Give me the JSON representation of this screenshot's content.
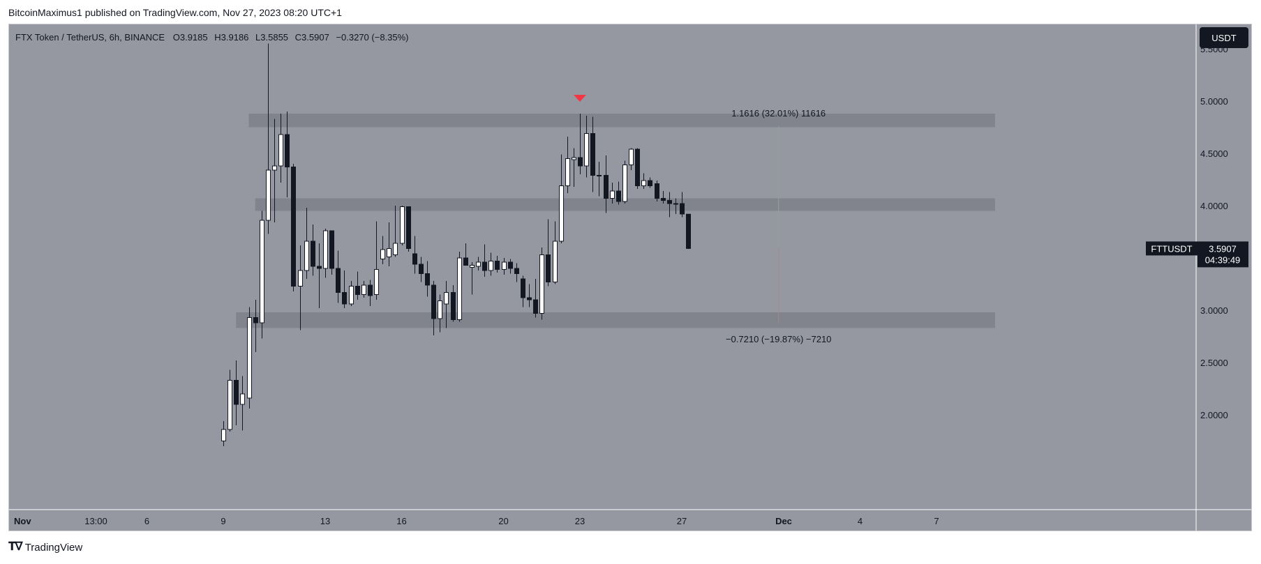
{
  "attribution": "BitcoinMaximus1 published on TradingView.com, Nov 27, 2023 08:20 UTC+1",
  "footer": {
    "brand": "TradingView",
    "logo_icon": "tradingview-logo-icon"
  },
  "header": {
    "symbol": "FTX Token / TetherUS, 6h, BINANCE",
    "o_label": "O",
    "o_value": "3.9185",
    "h_label": "H",
    "h_value": "3.9186",
    "l_label": "L",
    "l_value": "3.5855",
    "c_label": "C",
    "c_value": "3.5907",
    "change": "−0.3270 (−8.35%)"
  },
  "currency_button": "USDT",
  "price_tag": {
    "symbol": "FTTUSDT",
    "price": "3.5907",
    "countdown": "04:39:49"
  },
  "measure_up": "1.1616 (32.01%) 11616",
  "measure_down": "−0.7210 (−19.87%) −7210",
  "colors": {
    "background": "#ffffff",
    "plot": "#9598a1",
    "candle_up": "#ffffff",
    "candle_down": "#131722",
    "zone": "#7e8089",
    "marker": "#f23645",
    "axis_text": "#131722",
    "tag_bg": "#131722"
  },
  "marker_icon": "red-down-triangle-icon",
  "chart_data": {
    "type": "candlestick",
    "title": "FTX Token / TetherUS, 6h, BINANCE",
    "symbol": "FTTUSDT",
    "timeframe": "6h",
    "exchange": "BINANCE",
    "ylim": [
      1.75,
      5.6
    ],
    "y_ticks": [
      "5.5000",
      "5.0000",
      "4.5000",
      "4.0000",
      "3.5000",
      "3.0000",
      "2.5000",
      "2.0000"
    ],
    "x_ticks": [
      "Nov",
      "13:00",
      "6",
      "9",
      "13",
      "16",
      "20",
      "23",
      "27",
      "Dec",
      "4",
      "7"
    ],
    "x_tick_days": [
      1,
      4,
      6,
      9,
      13,
      16,
      20,
      23,
      27,
      31,
      34,
      37
    ],
    "last_price": 3.5907,
    "zones": [
      {
        "start_day": 10.0,
        "end_day": 39.3,
        "low": 4.75,
        "high": 4.88
      },
      {
        "start_day": 10.25,
        "end_day": 39.3,
        "low": 3.95,
        "high": 4.07
      },
      {
        "start_day": 9.5,
        "end_day": 39.3,
        "low": 2.83,
        "high": 2.98
      }
    ],
    "resistance_marker": {
      "day": 23.0,
      "price": 5.02
    },
    "measurement": {
      "day": 30.8,
      "from": 3.6,
      "up_to": 4.76,
      "down_to": 2.88
    },
    "candles": [
      {
        "t": 9.0,
        "o": 1.75,
        "h": 1.94,
        "l": 1.7,
        "c": 1.86
      },
      {
        "t": 9.25,
        "o": 1.86,
        "h": 2.43,
        "l": 1.84,
        "c": 2.33
      },
      {
        "t": 9.5,
        "o": 2.33,
        "h": 2.52,
        "l": 1.9,
        "c": 2.1
      },
      {
        "t": 9.75,
        "o": 2.1,
        "h": 2.37,
        "l": 1.85,
        "c": 2.2
      },
      {
        "t": 10.0,
        "o": 2.16,
        "h": 3.03,
        "l": 2.06,
        "c": 2.93
      },
      {
        "t": 10.25,
        "o": 2.93,
        "h": 3.1,
        "l": 2.6,
        "c": 2.88
      },
      {
        "t": 10.5,
        "o": 2.88,
        "h": 3.95,
        "l": 2.73,
        "c": 3.86
      },
      {
        "t": 10.75,
        "o": 3.86,
        "h": 5.55,
        "l": 3.73,
        "c": 4.34
      },
      {
        "t": 11.0,
        "o": 4.34,
        "h": 4.83,
        "l": 3.84,
        "c": 4.38
      },
      {
        "t": 11.25,
        "o": 4.38,
        "h": 4.88,
        "l": 4.22,
        "c": 4.68
      },
      {
        "t": 11.5,
        "o": 4.68,
        "h": 4.9,
        "l": 4.08,
        "c": 4.37
      },
      {
        "t": 11.75,
        "o": 4.37,
        "h": 4.4,
        "l": 3.18,
        "c": 3.23
      },
      {
        "t": 12.0,
        "o": 3.23,
        "h": 3.62,
        "l": 2.81,
        "c": 3.38
      },
      {
        "t": 12.25,
        "o": 3.38,
        "h": 3.98,
        "l": 3.3,
        "c": 3.66
      },
      {
        "t": 12.5,
        "o": 3.66,
        "h": 3.82,
        "l": 3.33,
        "c": 3.42
      },
      {
        "t": 12.75,
        "o": 3.42,
        "h": 3.64,
        "l": 3.02,
        "c": 3.4
      },
      {
        "t": 13.0,
        "o": 3.4,
        "h": 3.78,
        "l": 3.31,
        "c": 3.76
      },
      {
        "t": 13.25,
        "o": 3.76,
        "h": 3.76,
        "l": 3.34,
        "c": 3.4
      },
      {
        "t": 13.5,
        "o": 3.4,
        "h": 3.57,
        "l": 3.07,
        "c": 3.17
      },
      {
        "t": 13.75,
        "o": 3.17,
        "h": 3.38,
        "l": 3.02,
        "c": 3.06
      },
      {
        "t": 14.0,
        "o": 3.06,
        "h": 3.28,
        "l": 3.04,
        "c": 3.23
      },
      {
        "t": 14.25,
        "o": 3.23,
        "h": 3.37,
        "l": 3.1,
        "c": 3.15
      },
      {
        "t": 14.5,
        "o": 3.15,
        "h": 3.28,
        "l": 3.12,
        "c": 3.24
      },
      {
        "t": 14.75,
        "o": 3.24,
        "h": 3.29,
        "l": 3.04,
        "c": 3.14
      },
      {
        "t": 15.0,
        "o": 3.15,
        "h": 3.85,
        "l": 3.1,
        "c": 3.39
      },
      {
        "t": 15.25,
        "o": 3.49,
        "h": 3.71,
        "l": 3.44,
        "c": 3.58
      },
      {
        "t": 15.5,
        "o": 3.51,
        "h": 3.84,
        "l": 3.42,
        "c": 3.59
      },
      {
        "t": 15.75,
        "o": 3.53,
        "h": 4.0,
        "l": 3.51,
        "c": 3.64
      },
      {
        "t": 16.0,
        "o": 3.64,
        "h": 4.0,
        "l": 3.62,
        "c": 3.99
      },
      {
        "t": 16.25,
        "o": 3.99,
        "h": 3.99,
        "l": 3.56,
        "c": 3.59
      },
      {
        "t": 16.5,
        "o": 3.54,
        "h": 3.71,
        "l": 3.35,
        "c": 3.44
      },
      {
        "t": 16.75,
        "o": 3.44,
        "h": 3.51,
        "l": 3.27,
        "c": 3.35
      },
      {
        "t": 17.0,
        "o": 3.35,
        "h": 3.47,
        "l": 3.13,
        "c": 3.24
      },
      {
        "t": 17.25,
        "o": 3.24,
        "h": 3.28,
        "l": 2.76,
        "c": 2.92
      },
      {
        "t": 17.5,
        "o": 2.92,
        "h": 3.15,
        "l": 2.79,
        "c": 3.09
      },
      {
        "t": 17.75,
        "o": 3.06,
        "h": 3.28,
        "l": 2.83,
        "c": 3.17
      },
      {
        "t": 18.0,
        "o": 3.17,
        "h": 3.24,
        "l": 2.89,
        "c": 2.91
      },
      {
        "t": 18.25,
        "o": 2.91,
        "h": 3.56,
        "l": 2.89,
        "c": 3.5
      },
      {
        "t": 18.5,
        "o": 3.5,
        "h": 3.64,
        "l": 3.44,
        "c": 3.43
      },
      {
        "t": 18.75,
        "o": 3.41,
        "h": 3.46,
        "l": 3.15,
        "c": 3.43
      },
      {
        "t": 19.0,
        "o": 3.42,
        "h": 3.51,
        "l": 3.38,
        "c": 3.46
      },
      {
        "t": 19.25,
        "o": 3.46,
        "h": 3.63,
        "l": 3.32,
        "c": 3.38
      },
      {
        "t": 19.5,
        "o": 3.38,
        "h": 3.55,
        "l": 3.33,
        "c": 3.47
      },
      {
        "t": 19.75,
        "o": 3.47,
        "h": 3.52,
        "l": 3.36,
        "c": 3.39
      },
      {
        "t": 20.0,
        "o": 3.39,
        "h": 3.5,
        "l": 3.34,
        "c": 3.46
      },
      {
        "t": 20.25,
        "o": 3.46,
        "h": 3.49,
        "l": 3.35,
        "c": 3.4
      },
      {
        "t": 20.5,
        "o": 3.4,
        "h": 3.45,
        "l": 3.27,
        "c": 3.35
      },
      {
        "t": 20.75,
        "o": 3.3,
        "h": 3.33,
        "l": 3.03,
        "c": 3.12
      },
      {
        "t": 21.0,
        "o": 3.12,
        "h": 3.25,
        "l": 3.03,
        "c": 3.1
      },
      {
        "t": 21.25,
        "o": 3.1,
        "h": 3.3,
        "l": 2.93,
        "c": 2.97
      },
      {
        "t": 21.5,
        "o": 2.97,
        "h": 3.6,
        "l": 2.91,
        "c": 3.53
      },
      {
        "t": 21.75,
        "o": 3.53,
        "h": 3.87,
        "l": 3.23,
        "c": 3.27
      },
      {
        "t": 22.0,
        "o": 3.27,
        "h": 3.85,
        "l": 3.25,
        "c": 3.66
      },
      {
        "t": 22.25,
        "o": 3.66,
        "h": 4.49,
        "l": 3.64,
        "c": 4.19
      },
      {
        "t": 22.5,
        "o": 4.19,
        "h": 4.66,
        "l": 4.12,
        "c": 4.45
      },
      {
        "t": 22.75,
        "o": 4.44,
        "h": 4.55,
        "l": 4.18,
        "c": 4.46
      },
      {
        "t": 23.0,
        "o": 4.46,
        "h": 4.88,
        "l": 4.3,
        "c": 4.38
      },
      {
        "t": 23.25,
        "o": 4.38,
        "h": 4.86,
        "l": 4.27,
        "c": 4.69
      },
      {
        "t": 23.5,
        "o": 4.69,
        "h": 4.85,
        "l": 4.13,
        "c": 4.29
      },
      {
        "t": 23.75,
        "o": 4.29,
        "h": 4.42,
        "l": 4.09,
        "c": 4.29
      },
      {
        "t": 24.0,
        "o": 4.29,
        "h": 4.48,
        "l": 3.93,
        "c": 4.07
      },
      {
        "t": 24.25,
        "o": 4.07,
        "h": 4.22,
        "l": 4.02,
        "c": 4.14
      },
      {
        "t": 24.5,
        "o": 4.14,
        "h": 4.23,
        "l": 4.01,
        "c": 4.04
      },
      {
        "t": 24.75,
        "o": 4.04,
        "h": 4.43,
        "l": 4.02,
        "c": 4.39
      },
      {
        "t": 25.0,
        "o": 4.39,
        "h": 4.55,
        "l": 4.34,
        "c": 4.54
      },
      {
        "t": 25.25,
        "o": 4.54,
        "h": 4.55,
        "l": 4.16,
        "c": 4.19
      },
      {
        "t": 25.5,
        "o": 4.19,
        "h": 4.31,
        "l": 4.16,
        "c": 4.24
      },
      {
        "t": 25.75,
        "o": 4.24,
        "h": 4.27,
        "l": 4.17,
        "c": 4.19
      },
      {
        "t": 26.0,
        "o": 4.21,
        "h": 4.24,
        "l": 4.04,
        "c": 4.07
      },
      {
        "t": 26.25,
        "o": 4.07,
        "h": 4.14,
        "l": 4.02,
        "c": 4.05
      },
      {
        "t": 26.5,
        "o": 4.05,
        "h": 4.13,
        "l": 3.89,
        "c": 4.02
      },
      {
        "t": 26.75,
        "o": 4.02,
        "h": 4.07,
        "l": 3.92,
        "c": 4.02
      },
      {
        "t": 27.0,
        "o": 4.02,
        "h": 4.13,
        "l": 3.89,
        "c": 3.92
      },
      {
        "t": 27.25,
        "o": 3.9185,
        "h": 3.9186,
        "l": 3.5855,
        "c": 3.5907
      }
    ]
  }
}
